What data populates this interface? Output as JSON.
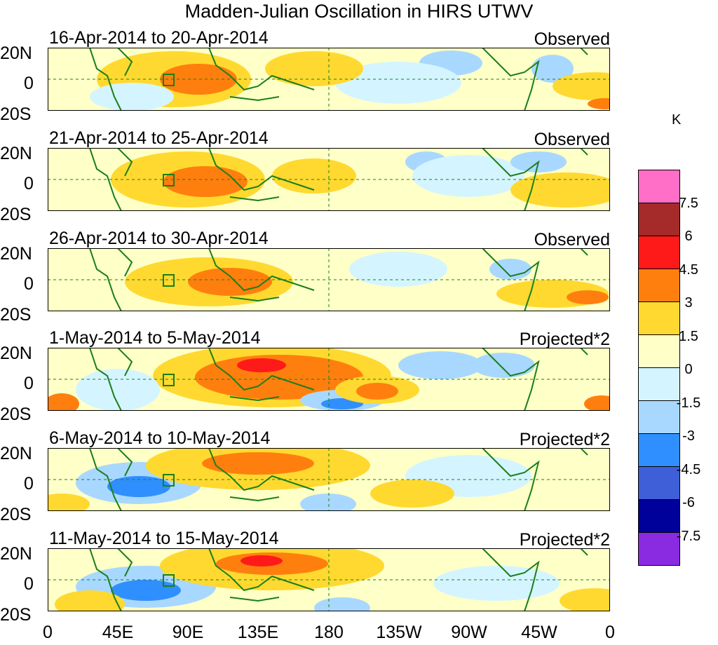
{
  "title": "Madden-Julian Oscillation in HIRS UTWV",
  "panels": [
    {
      "dates": "16-Apr-2014 to 20-Apr-2014",
      "tag": "Observed"
    },
    {
      "dates": "21-Apr-2014 to 25-Apr-2014",
      "tag": "Observed"
    },
    {
      "dates": "26-Apr-2014 to 30-Apr-2014",
      "tag": "Observed"
    },
    {
      "dates": "1-May-2014 to 5-May-2014",
      "tag": "Projected*2"
    },
    {
      "dates": "6-May-2014 to 10-May-2014",
      "tag": "Projected*2"
    },
    {
      "dates": "11-May-2014 to 15-May-2014",
      "tag": "Projected*2"
    }
  ],
  "lat_labels": {
    "north": "20N",
    "equator": "0",
    "south": "20S"
  },
  "lon_labels": [
    "0",
    "45E",
    "90E",
    "135E",
    "180",
    "135W",
    "90W",
    "45W",
    "0"
  ],
  "legend": {
    "unit": "K",
    "levels": [
      "7.5",
      "6",
      "4.5",
      "3",
      "1.5",
      "0",
      "-1.5",
      "-3",
      "-4.5",
      "-6",
      "-7.5"
    ],
    "colors": [
      "#ff6ec7",
      "#a52a2a",
      "#ff1a1a",
      "#ff7f0e",
      "#ffd92f",
      "#ffffc8",
      "#d4f5ff",
      "#a8d8ff",
      "#2f8fff",
      "#3f5fd8",
      "#00009a",
      "#8a2be2"
    ]
  }
}
